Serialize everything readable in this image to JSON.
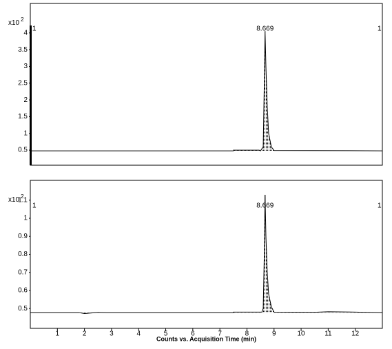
{
  "chart_data": [
    {
      "type": "line",
      "y_multiplier": {
        "base": "x10",
        "exponent": "2"
      },
      "trace_labels": [
        "1",
        "1"
      ],
      "annotations": [
        {
          "text": "8.669",
          "x": 8.669
        }
      ],
      "x": [
        0,
        7.5,
        7.5,
        8.45,
        8.5,
        8.6,
        8.64,
        8.669,
        8.7,
        8.75,
        8.8,
        8.9,
        9.0,
        13
      ],
      "values": [
        0.48,
        0.48,
        0.5,
        0.5,
        0.48,
        0.6,
        2.5,
        4.05,
        3.0,
        1.8,
        1.0,
        0.6,
        0.49,
        0.48
      ],
      "color": "#000000",
      "xlim": [
        0,
        13
      ],
      "ylim": [
        0.05,
        4.88
      ],
      "yticks": [
        0.5,
        1,
        1.5,
        2,
        2.5,
        3,
        3.5,
        4
      ]
    },
    {
      "type": "line",
      "y_multiplier": {
        "base": "x10",
        "exponent": "2"
      },
      "trace_labels": [
        "1",
        "1"
      ],
      "annotations": [
        {
          "text": "8.669",
          "x": 8.669
        }
      ],
      "x": [
        0,
        1.8,
        2.0,
        2.5,
        2.8,
        7.5,
        7.5,
        8.55,
        8.6,
        8.64,
        8.669,
        8.7,
        8.75,
        8.8,
        8.9,
        9.0,
        10.5,
        11.0,
        12.0,
        13
      ],
      "values": [
        0.477,
        0.477,
        0.472,
        0.478,
        0.477,
        0.477,
        0.48,
        0.48,
        0.5,
        0.8,
        1.13,
        0.9,
        0.7,
        0.58,
        0.51,
        0.48,
        0.479,
        0.482,
        0.48,
        0.477
      ],
      "color": "#000000",
      "xlim": [
        0,
        13
      ],
      "ylim": [
        0.39,
        1.21
      ],
      "yticks": [
        0.5,
        0.6,
        0.7,
        0.8,
        0.9,
        1,
        1.1
      ],
      "xticks": [
        1,
        2,
        3,
        4,
        5,
        6,
        7,
        8,
        9,
        10,
        11,
        12
      ],
      "xlabel": "Counts vs. Acquisition Time (min)"
    }
  ]
}
